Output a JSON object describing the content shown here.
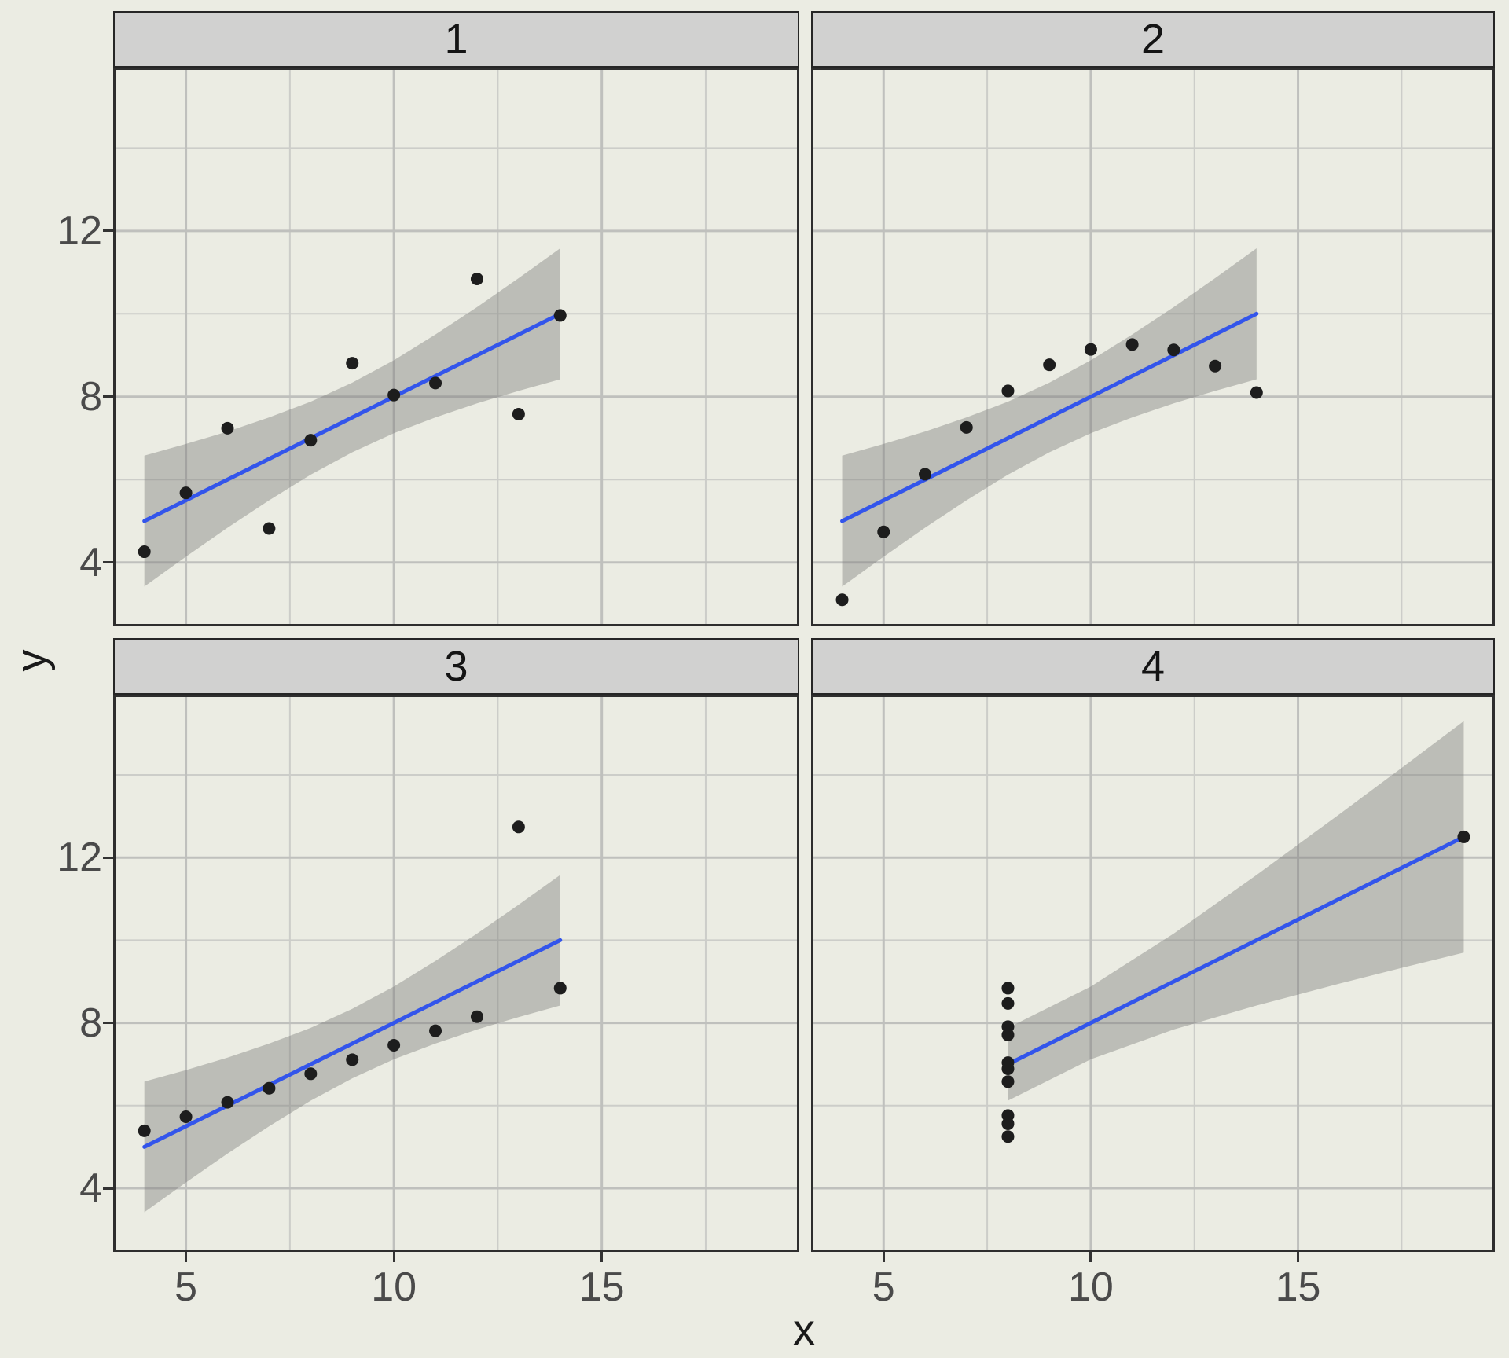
{
  "chart_data": {
    "type": "scatter",
    "title": "",
    "xlabel": "x",
    "ylabel": "y",
    "grid": true,
    "legend": "none",
    "x_ticks": [
      5,
      10,
      15
    ],
    "y_ticks": [
      4,
      8,
      12
    ],
    "x_minor_ticks": [
      7.5,
      12.5,
      17.5
    ],
    "y_minor_ticks": [
      6,
      10,
      14
    ],
    "xlim": [
      3.25,
      19.75
    ],
    "ylim": [
      2.46,
      15.94
    ],
    "colors": {
      "trend_line": "#3355EB",
      "point": "#1D1D1D",
      "ribbon": "rgba(125,125,122,0.42)",
      "grid_major": "#BFC0BD",
      "grid_minor": "#CCCDC9",
      "panel_border": "#2E2E2E",
      "strip_background": "#D1D1D0",
      "background": "#EBECE3"
    },
    "facets": [
      {
        "label": "1",
        "points": [
          [
            10,
            8.04
          ],
          [
            8,
            6.95
          ],
          [
            13,
            7.58
          ],
          [
            9,
            8.81
          ],
          [
            11,
            8.33
          ],
          [
            14,
            9.96
          ],
          [
            6,
            7.24
          ],
          [
            4,
            4.26
          ],
          [
            12,
            10.84
          ],
          [
            7,
            4.82
          ],
          [
            5,
            5.68
          ]
        ],
        "trend": {
          "x": [
            4,
            14
          ],
          "y": [
            5,
            10
          ]
        },
        "ribbon": {
          "x": [
            4,
            5,
            6,
            7,
            8,
            9,
            10,
            11,
            12,
            13,
            14
          ],
          "upper": [
            6.58,
            6.86,
            7.16,
            7.5,
            7.88,
            8.34,
            8.88,
            9.5,
            10.16,
            10.86,
            11.58
          ],
          "lower": [
            3.42,
            4.14,
            4.84,
            5.5,
            6.12,
            6.66,
            7.12,
            7.5,
            7.84,
            8.14,
            8.42
          ]
        }
      },
      {
        "label": "2",
        "points": [
          [
            10,
            9.14
          ],
          [
            8,
            8.14
          ],
          [
            13,
            8.74
          ],
          [
            9,
            8.77
          ],
          [
            11,
            9.26
          ],
          [
            14,
            8.1
          ],
          [
            6,
            6.13
          ],
          [
            4,
            3.1
          ],
          [
            12,
            9.13
          ],
          [
            7,
            7.26
          ],
          [
            5,
            4.74
          ]
        ],
        "trend": {
          "x": [
            4,
            14
          ],
          "y": [
            5,
            10
          ]
        },
        "ribbon": {
          "x": [
            4,
            5,
            6,
            7,
            8,
            9,
            10,
            11,
            12,
            13,
            14
          ],
          "upper": [
            6.58,
            6.86,
            7.16,
            7.5,
            7.88,
            8.34,
            8.88,
            9.5,
            10.16,
            10.86,
            11.58
          ],
          "lower": [
            3.42,
            4.14,
            4.84,
            5.5,
            6.12,
            6.66,
            7.12,
            7.5,
            7.84,
            8.14,
            8.42
          ]
        }
      },
      {
        "label": "3",
        "points": [
          [
            10,
            7.46
          ],
          [
            8,
            6.77
          ],
          [
            13,
            12.74
          ],
          [
            9,
            7.11
          ],
          [
            11,
            7.81
          ],
          [
            14,
            8.84
          ],
          [
            6,
            6.08
          ],
          [
            4,
            5.39
          ],
          [
            12,
            8.15
          ],
          [
            7,
            6.42
          ],
          [
            5,
            5.73
          ]
        ],
        "trend": {
          "x": [
            4,
            14
          ],
          "y": [
            5,
            10
          ]
        },
        "ribbon": {
          "x": [
            4,
            5,
            6,
            7,
            8,
            9,
            10,
            11,
            12,
            13,
            14
          ],
          "upper": [
            6.58,
            6.86,
            7.16,
            7.5,
            7.88,
            8.34,
            8.88,
            9.5,
            10.16,
            10.86,
            11.58
          ],
          "lower": [
            3.42,
            4.14,
            4.84,
            5.5,
            6.12,
            6.66,
            7.12,
            7.5,
            7.84,
            8.14,
            8.42
          ]
        }
      },
      {
        "label": "4",
        "points": [
          [
            8,
            6.58
          ],
          [
            8,
            5.76
          ],
          [
            8,
            7.71
          ],
          [
            8,
            8.84
          ],
          [
            8,
            8.47
          ],
          [
            8,
            7.04
          ],
          [
            8,
            5.25
          ],
          [
            19,
            12.5
          ],
          [
            8,
            5.56
          ],
          [
            8,
            7.91
          ],
          [
            8,
            6.89
          ]
        ],
        "trend": {
          "x": [
            8,
            19
          ],
          "y": [
            7,
            12.5
          ]
        },
        "ribbon": {
          "x": [
            8,
            10,
            12,
            14,
            16,
            17.5,
            19
          ],
          "upper": [
            7.88,
            8.88,
            10.16,
            11.58,
            13.05,
            14.17,
            15.3
          ],
          "lower": [
            6.12,
            7.12,
            7.84,
            8.42,
            8.95,
            9.33,
            9.7
          ]
        }
      }
    ]
  }
}
